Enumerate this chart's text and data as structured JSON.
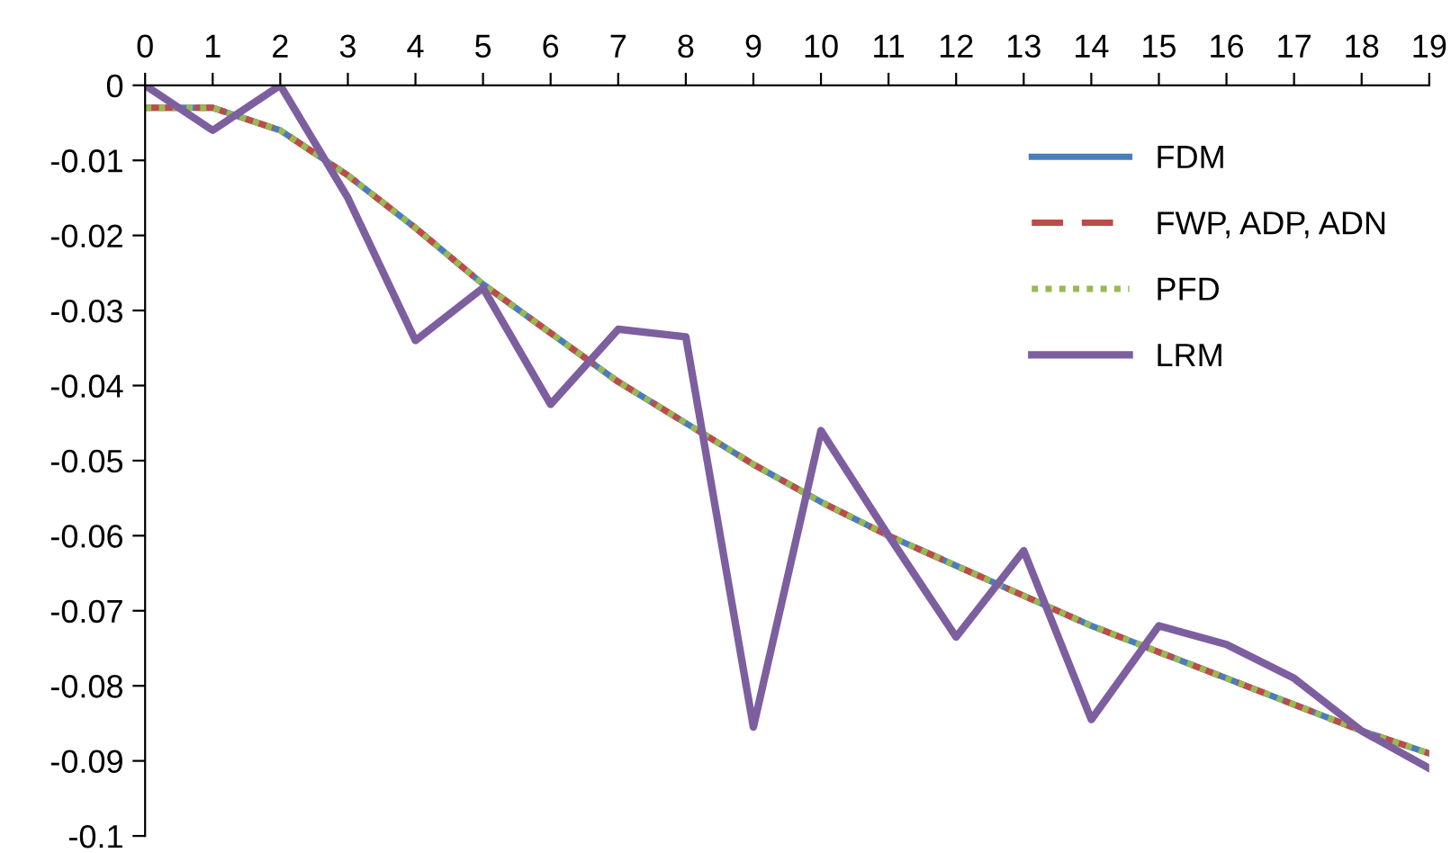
{
  "chart_data": {
    "type": "line",
    "x": [
      0,
      1,
      2,
      3,
      4,
      5,
      6,
      7,
      8,
      9,
      10,
      11,
      12,
      13,
      14,
      15,
      16,
      17,
      18,
      19
    ],
    "xlim": [
      0,
      19
    ],
    "xticks": [
      0,
      1,
      2,
      3,
      4,
      5,
      6,
      7,
      8,
      9,
      10,
      11,
      12,
      13,
      14,
      15,
      16,
      17,
      18,
      19
    ],
    "ylim": [
      -0.1,
      0
    ],
    "yticks": [
      {
        "value": 0,
        "label": "0"
      },
      {
        "value": -0.01,
        "label": "-0.01"
      },
      {
        "value": -0.02,
        "label": "-0.02"
      },
      {
        "value": -0.03,
        "label": "-0.03"
      },
      {
        "value": -0.04,
        "label": "-0.04"
      },
      {
        "value": -0.05,
        "label": "-0.05"
      },
      {
        "value": -0.06,
        "label": "-0.06"
      },
      {
        "value": -0.07,
        "label": "-0.07"
      },
      {
        "value": -0.08,
        "label": "-0.08"
      },
      {
        "value": -0.09,
        "label": "-0.09"
      },
      {
        "value": -0.1,
        "label": "-0.1"
      }
    ],
    "grid": false,
    "legend": "top right",
    "marker": "none",
    "series": [
      {
        "name": "FDM",
        "color": "#4a7ebb",
        "line_style": "solid",
        "values": [
          -0.003,
          -0.003,
          -0.006,
          -0.012,
          -0.019,
          -0.0265,
          -0.033,
          -0.0395,
          -0.045,
          -0.0505,
          -0.0555,
          -0.06,
          -0.064,
          -0.068,
          -0.072,
          -0.0755,
          -0.079,
          -0.0825,
          -0.086,
          -0.089
        ]
      },
      {
        "name": "FWP, ADP, ADN",
        "color": "#be4b48",
        "line_style": "dashed",
        "values": [
          -0.003,
          -0.003,
          -0.006,
          -0.012,
          -0.019,
          -0.0265,
          -0.033,
          -0.0395,
          -0.045,
          -0.0505,
          -0.0555,
          -0.06,
          -0.064,
          -0.068,
          -0.072,
          -0.0755,
          -0.079,
          -0.0825,
          -0.086,
          -0.089
        ]
      },
      {
        "name": "PFD",
        "color": "#98b954",
        "line_style": "dotted",
        "values": [
          -0.003,
          -0.003,
          -0.006,
          -0.012,
          -0.019,
          -0.0265,
          -0.033,
          -0.0395,
          -0.045,
          -0.0505,
          -0.0555,
          -0.06,
          -0.064,
          -0.068,
          -0.072,
          -0.0755,
          -0.079,
          -0.0825,
          -0.086,
          -0.089
        ]
      },
      {
        "name": "LRM",
        "color": "#7d5fa0",
        "line_style": "solid",
        "values": [
          0,
          -0.006,
          0,
          -0.015,
          -0.034,
          -0.027,
          -0.0425,
          -0.0325,
          -0.0335,
          -0.0855,
          -0.046,
          -0.06,
          -0.0735,
          -0.062,
          -0.0845,
          -0.072,
          -0.0745,
          -0.079,
          -0.086,
          -0.091
        ]
      }
    ]
  }
}
